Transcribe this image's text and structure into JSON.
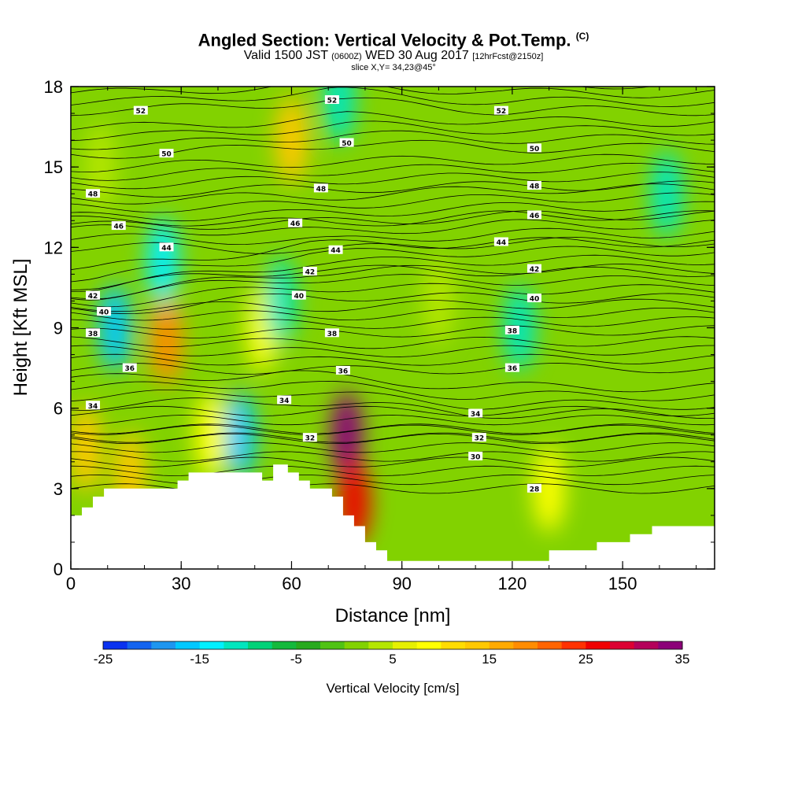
{
  "title": "Angled Section: Vertical Velocity & Pot.Temp.",
  "title_unit": "(C)",
  "subtitle_pre": "Valid 1500 JST",
  "subtitle_z": "(0600Z)",
  "subtitle_mid": "WED 30 Aug 2017",
  "subtitle_fcst": "[12hrFcst@2150z]",
  "slice_label": "slice X,Y= 34,23@45°",
  "chart_data": {
    "type": "heatmap",
    "xlabel": "Distance [nm]",
    "ylabel": "Height [Kft MSL]",
    "xlim": [
      0,
      175
    ],
    "ylim": [
      0,
      18
    ],
    "xticks": [
      "0",
      "30",
      "60",
      "90",
      "120",
      "150"
    ],
    "yticks": [
      "0",
      "3",
      "6",
      "9",
      "12",
      "15",
      "18"
    ],
    "colorbar": {
      "label": "Vertical Velocity [cm/s]",
      "range": [
        -25,
        35
      ],
      "step": 2.5,
      "tick_labels": [
        "-25",
        "-15",
        "-5",
        "5",
        "15",
        "25",
        "35"
      ],
      "colors": [
        "#0000ff",
        "#0a32f0",
        "#1464f0",
        "#1e96f0",
        "#00c8ff",
        "#00f0ff",
        "#00e6be",
        "#00d278",
        "#14b93c",
        "#28aa1e",
        "#50c314",
        "#82d200",
        "#b4e600",
        "#e6f000",
        "#ffff00",
        "#ffdc00",
        "#ffc800",
        "#ffaa00",
        "#ff8c00",
        "#ff6400",
        "#ff3200",
        "#f00000",
        "#dc0032",
        "#b4005a",
        "#8c0078",
        "#640096"
      ]
    },
    "vertical_velocity_cells": [
      {
        "x": 12,
        "y": 9.0,
        "value": -15
      },
      {
        "x": 26,
        "y": 8.5,
        "value": 20
      },
      {
        "x": 25,
        "y": 11.5,
        "value": -12
      },
      {
        "x": 46,
        "y": 5.0,
        "value": -15
      },
      {
        "x": 52,
        "y": 9.0,
        "value": 10
      },
      {
        "x": 57,
        "y": 10.0,
        "value": -10
      },
      {
        "x": 60,
        "y": 16.0,
        "value": 15
      },
      {
        "x": 75,
        "y": 5.0,
        "value": 35
      },
      {
        "x": 77,
        "y": 2.5,
        "value": 28
      },
      {
        "x": 73,
        "y": 17.5,
        "value": -10
      },
      {
        "x": 4,
        "y": 4.5,
        "value": 15
      },
      {
        "x": 16,
        "y": 3.5,
        "value": 15
      },
      {
        "x": 130,
        "y": 3.0,
        "value": 12
      },
      {
        "x": 38,
        "y": 5.0,
        "value": 10
      },
      {
        "x": 100,
        "y": 10.0,
        "value": 5
      },
      {
        "x": 122,
        "y": 9.0,
        "value": -8
      },
      {
        "x": 162,
        "y": 14.0,
        "value": -8
      },
      {
        "x": 8,
        "y": 15.0,
        "value": 6
      }
    ],
    "theta_levels": [
      "28",
      "30",
      "32",
      "34",
      "36",
      "38",
      "40",
      "42",
      "44",
      "46",
      "48",
      "50",
      "52"
    ],
    "theta_labels": [
      {
        "text": "52",
        "x": 19,
        "y": 17.1
      },
      {
        "text": "52",
        "x": 71,
        "y": 17.5
      },
      {
        "text": "52",
        "x": 117,
        "y": 17.1
      },
      {
        "text": "50",
        "x": 26,
        "y": 15.5
      },
      {
        "text": "50",
        "x": 75,
        "y": 15.9
      },
      {
        "text": "50",
        "x": 126,
        "y": 15.7
      },
      {
        "text": "48",
        "x": 6,
        "y": 14.0
      },
      {
        "text": "48",
        "x": 68,
        "y": 14.2
      },
      {
        "text": "48",
        "x": 126,
        "y": 14.3
      },
      {
        "text": "46",
        "x": 13,
        "y": 12.8
      },
      {
        "text": "46",
        "x": 61,
        "y": 12.9
      },
      {
        "text": "46",
        "x": 126,
        "y": 13.2
      },
      {
        "text": "44",
        "x": 26,
        "y": 12.0
      },
      {
        "text": "44",
        "x": 72,
        "y": 11.9
      },
      {
        "text": "44",
        "x": 117,
        "y": 12.2
      },
      {
        "text": "42",
        "x": 6,
        "y": 10.2
      },
      {
        "text": "42",
        "x": 65,
        "y": 11.1
      },
      {
        "text": "42",
        "x": 126,
        "y": 11.2
      },
      {
        "text": "40",
        "x": 9,
        "y": 9.6
      },
      {
        "text": "40",
        "x": 62,
        "y": 10.2
      },
      {
        "text": "40",
        "x": 126,
        "y": 10.1
      },
      {
        "text": "38",
        "x": 6,
        "y": 8.8
      },
      {
        "text": "38",
        "x": 71,
        "y": 8.8
      },
      {
        "text": "38",
        "x": 120,
        "y": 8.9
      },
      {
        "text": "36",
        "x": 16,
        "y": 7.5
      },
      {
        "text": "36",
        "x": 74,
        "y": 7.4
      },
      {
        "text": "36",
        "x": 120,
        "y": 7.5
      },
      {
        "text": "34",
        "x": 6,
        "y": 6.1
      },
      {
        "text": "34",
        "x": 58,
        "y": 6.3
      },
      {
        "text": "34",
        "x": 110,
        "y": 5.8
      },
      {
        "text": "32",
        "x": 65,
        "y": 4.9
      },
      {
        "text": "32",
        "x": 111,
        "y": 4.9
      },
      {
        "text": "30",
        "x": 110,
        "y": 4.2
      },
      {
        "text": "28",
        "x": 126,
        "y": 3.0
      }
    ],
    "terrain": [
      [
        0,
        2.0
      ],
      [
        3,
        2.0
      ],
      [
        3,
        2.3
      ],
      [
        6,
        2.3
      ],
      [
        6,
        2.7
      ],
      [
        9,
        2.7
      ],
      [
        9,
        3.0
      ],
      [
        12,
        3.0
      ],
      [
        29,
        3.0
      ],
      [
        29,
        3.3
      ],
      [
        32,
        3.3
      ],
      [
        32,
        3.6
      ],
      [
        52,
        3.6
      ],
      [
        52,
        3.3
      ],
      [
        55,
        3.3
      ],
      [
        55,
        3.9
      ],
      [
        59,
        3.9
      ],
      [
        59,
        3.6
      ],
      [
        62,
        3.6
      ],
      [
        62,
        3.3
      ],
      [
        65,
        3.3
      ],
      [
        65,
        3.0
      ],
      [
        71,
        3.0
      ],
      [
        71,
        2.7
      ],
      [
        74,
        2.7
      ],
      [
        74,
        2.0
      ],
      [
        77,
        2.0
      ],
      [
        77,
        1.6
      ],
      [
        80,
        1.6
      ],
      [
        80,
        1.0
      ],
      [
        83,
        1.0
      ],
      [
        83,
        0.7
      ],
      [
        86,
        0.7
      ],
      [
        86,
        0.3
      ],
      [
        130,
        0.3
      ],
      [
        130,
        0.7
      ],
      [
        143,
        0.7
      ],
      [
        143,
        1.0
      ],
      [
        152,
        1.0
      ],
      [
        152,
        1.3
      ],
      [
        158,
        1.3
      ],
      [
        158,
        1.6
      ],
      [
        165,
        1.6
      ],
      [
        175,
        1.6
      ]
    ]
  }
}
